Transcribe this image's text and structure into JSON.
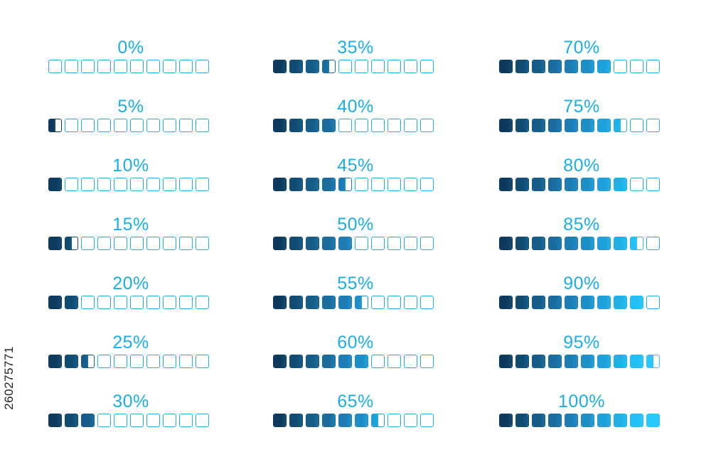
{
  "colors": {
    "outline": "#1aaee8",
    "label": "#1aaee8",
    "empty": "#ffffff",
    "segment_gradient": [
      "#0d3a5c",
      "#124b72",
      "#165c87",
      "#1a6c9d",
      "#1e7cb3",
      "#1f8ec7",
      "#209fd9",
      "#21afe8",
      "#22bef5",
      "#28c8fb"
    ]
  },
  "segments_per_bar": 10,
  "columns": [
    {
      "indicators": [
        {
          "label": "0%",
          "value": 0
        },
        {
          "label": "5%",
          "value": 5
        },
        {
          "label": "10%",
          "value": 10
        },
        {
          "label": "15%",
          "value": 15
        },
        {
          "label": "20%",
          "value": 20
        },
        {
          "label": "25%",
          "value": 25
        },
        {
          "label": "30%",
          "value": 30
        }
      ]
    },
    {
      "indicators": [
        {
          "label": "35%",
          "value": 35
        },
        {
          "label": "40%",
          "value": 40
        },
        {
          "label": "45%",
          "value": 45
        },
        {
          "label": "50%",
          "value": 50
        },
        {
          "label": "55%",
          "value": 55
        },
        {
          "label": "60%",
          "value": 60
        },
        {
          "label": "65%",
          "value": 65
        }
      ]
    },
    {
      "indicators": [
        {
          "label": "70%",
          "value": 70
        },
        {
          "label": "75%",
          "value": 75
        },
        {
          "label": "80%",
          "value": 80
        },
        {
          "label": "85%",
          "value": 85
        },
        {
          "label": "90%",
          "value": 90
        },
        {
          "label": "95%",
          "value": 95
        },
        {
          "label": "100%",
          "value": 100
        }
      ]
    }
  ],
  "stock_id": "260275771"
}
